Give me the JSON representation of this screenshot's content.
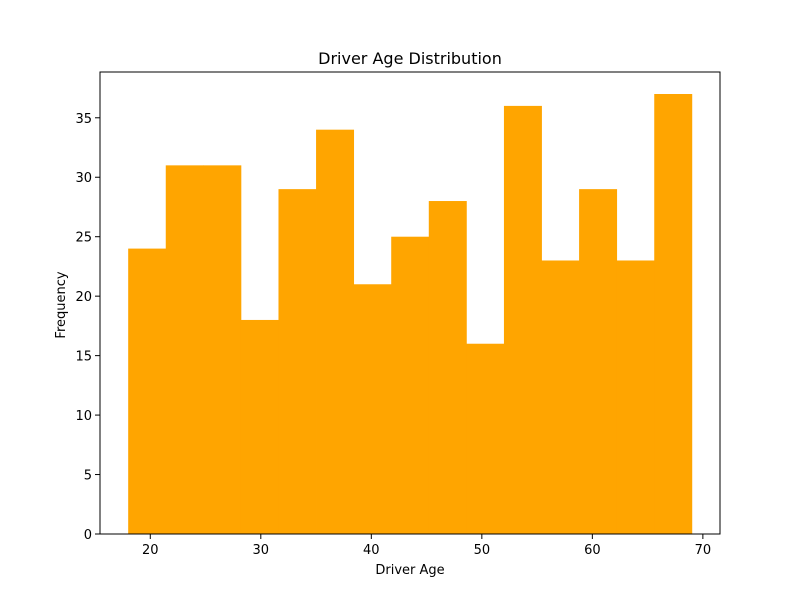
{
  "colors": {
    "bar": "#ffa500",
    "axis": "#000000",
    "background": "#ffffff"
  },
  "chart_data": {
    "type": "bar",
    "subtype": "histogram",
    "title": "Driver Age Distribution",
    "xlabel": "Driver Age",
    "ylabel": "Frequency",
    "xlim": [
      15.45,
      71.55
    ],
    "ylim": [
      0,
      38.85
    ],
    "x_ticks": [
      20,
      30,
      40,
      50,
      60,
      70
    ],
    "y_ticks": [
      0,
      5,
      10,
      15,
      20,
      25,
      30,
      35
    ],
    "grid": false,
    "legend": "none",
    "bins": [
      {
        "start": 18.0,
        "end": 21.4,
        "count": 24
      },
      {
        "start": 21.4,
        "end": 24.8,
        "count": 31
      },
      {
        "start": 24.8,
        "end": 28.2,
        "count": 31
      },
      {
        "start": 28.2,
        "end": 31.6,
        "count": 18
      },
      {
        "start": 31.6,
        "end": 35.0,
        "count": 29
      },
      {
        "start": 35.0,
        "end": 38.4,
        "count": 34
      },
      {
        "start": 38.4,
        "end": 41.8,
        "count": 21
      },
      {
        "start": 41.8,
        "end": 45.2,
        "count": 25
      },
      {
        "start": 45.2,
        "end": 48.6,
        "count": 28
      },
      {
        "start": 48.6,
        "end": 52.0,
        "count": 16
      },
      {
        "start": 52.0,
        "end": 55.4,
        "count": 36
      },
      {
        "start": 55.4,
        "end": 58.8,
        "count": 23
      },
      {
        "start": 58.8,
        "end": 62.2,
        "count": 29
      },
      {
        "start": 62.2,
        "end": 65.6,
        "count": 23
      },
      {
        "start": 65.6,
        "end": 69.0,
        "count": 37
      }
    ]
  }
}
